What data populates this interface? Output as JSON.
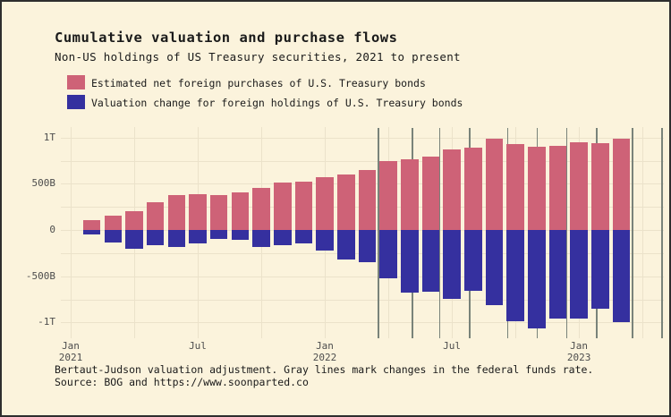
{
  "page": {
    "background_color": "#fbf3dc",
    "border_color": "#2e2e2e"
  },
  "header": {
    "title": "Cumulative valuation and purchase flows",
    "subtitle": "Non-US holdings of US Treasury securities, 2021 to present"
  },
  "legend": [
    {
      "label": "Estimated net foreign purchases of U.S. Treasury bonds",
      "color": "#ce6277"
    },
    {
      "label": "Valuation change for foreign holdings of U.S. Treasury bonds",
      "color": "#35309f"
    }
  ],
  "chart_data": {
    "type": "bar",
    "variant": "stacked-diverging-monthly",
    "title": "Cumulative valuation and purchase flows",
    "subtitle": "Non-US holdings of US Treasury securities, 2021 to present",
    "unit": "billions of USD",
    "months": [
      "2021-02",
      "2021-03",
      "2021-04",
      "2021-05",
      "2021-06",
      "2021-07",
      "2021-08",
      "2021-09",
      "2021-10",
      "2021-11",
      "2021-12",
      "2022-01",
      "2022-02",
      "2022-03",
      "2022-04",
      "2022-05",
      "2022-06",
      "2022-07",
      "2022-08",
      "2022-09",
      "2022-10",
      "2022-11",
      "2022-12",
      "2023-01",
      "2023-02",
      "2023-03"
    ],
    "series": [
      {
        "name": "Estimated net foreign purchases of U.S. Treasury bonds",
        "color": "#ce6277",
        "values": [
          110,
          158,
          203,
          297,
          374,
          387,
          380,
          409,
          452,
          510,
          520,
          574,
          597,
          651,
          742,
          765,
          790,
          871,
          893,
          984,
          929,
          900,
          913,
          952,
          942,
          984
        ]
      },
      {
        "name": "Valuation change for foreign holdings of U.S. Treasury bonds",
        "color": "#35309f",
        "values": [
          -51,
          -136,
          -203,
          -167,
          -187,
          -142,
          -97,
          -109,
          -184,
          -167,
          -145,
          -226,
          -322,
          -348,
          -523,
          -678,
          -671,
          -742,
          -661,
          -816,
          -984,
          -1065,
          -961,
          -961,
          -855,
          -1000
        ]
      }
    ],
    "ylim": [
      -1100,
      1080
    ],
    "y_ticks": [
      {
        "value": 1000,
        "label": "1T"
      },
      {
        "value": 500,
        "label": "500B"
      },
      {
        "value": 0,
        "label": "0"
      },
      {
        "value": -500,
        "label": "-500B"
      },
      {
        "value": -1000,
        "label": "-1T"
      }
    ],
    "y_grid_step": 250,
    "x_ticks": [
      {
        "month_offset": 0,
        "line1": "Jan",
        "line2": "2021"
      },
      {
        "month_offset": 6,
        "line1": "Jul",
        "line2": ""
      },
      {
        "month_offset": 12,
        "line1": "Jan",
        "line2": "2022"
      },
      {
        "month_offset": 18,
        "line1": "Jul",
        "line2": ""
      },
      {
        "month_offset": 24,
        "line1": "Jan",
        "line2": "2023"
      }
    ],
    "x_grid_quarterly_offsets": [
      0,
      3,
      6,
      9,
      12,
      15,
      18,
      21,
      24,
      27
    ],
    "fed_rate_change_month_offsets": [
      14.5,
      16.1,
      17.4,
      18.8,
      20.6,
      22.0,
      23.4,
      24.8,
      26.5,
      27.9
    ],
    "fed_line_color": "#79837a",
    "grid": true,
    "legend_position": "top-left"
  },
  "footer": {
    "note": "Bertaut-Judson valuation adjustment. Gray lines mark changes in the federal funds rate.",
    "source_label": "Source: BOG and",
    "source_url": "https://www.soonparted.co"
  }
}
